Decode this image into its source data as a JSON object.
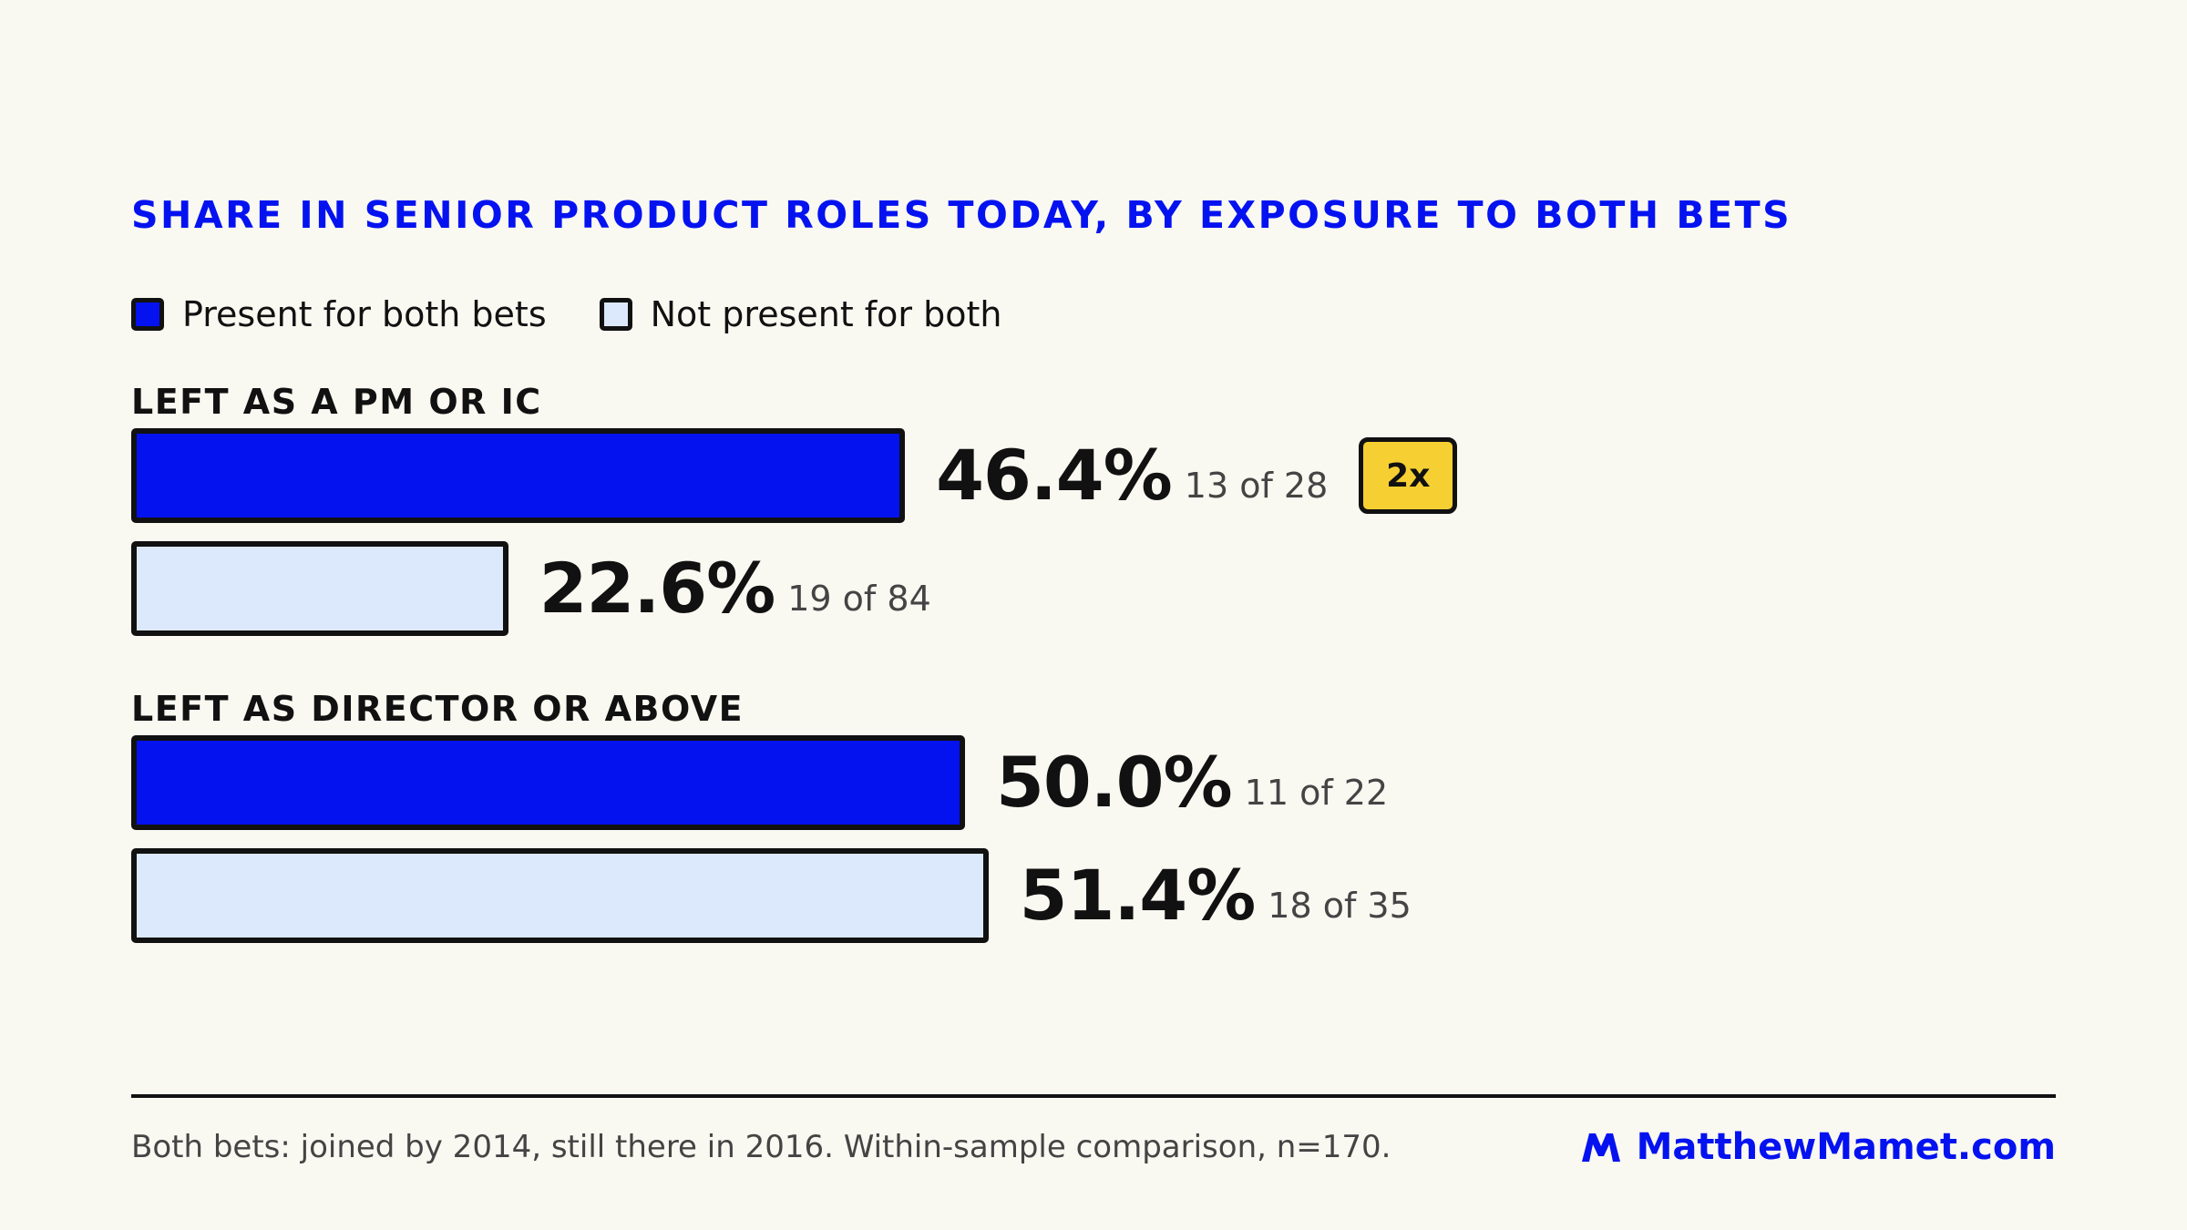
{
  "chart_data": {
    "type": "bar",
    "orientation": "horizontal",
    "title": "SHARE IN SENIOR PRODUCT ROLES TODAY, BY EXPOSURE TO BOTH BETS",
    "legend_position": "top-left",
    "legend": [
      {
        "name": "Present for both bets",
        "color": "#0512f0"
      },
      {
        "name": "Not present for both",
        "color": "#dce8fc"
      }
    ],
    "categories": [
      "LEFT AS A PM OR IC",
      "LEFT AS DIRECTOR OR ABOVE"
    ],
    "series": [
      {
        "name": "Present for both bets",
        "values": [
          46.4,
          50.0
        ],
        "labels": [
          "46.4%",
          "50.0%"
        ],
        "counts": [
          "13 of 28",
          "11 of 22"
        ]
      },
      {
        "name": "Not present for both",
        "values": [
          22.6,
          51.4
        ],
        "labels": [
          "22.6%",
          "51.4%"
        ],
        "counts": [
          "19 of 84",
          "18 of 35"
        ]
      }
    ],
    "annotations": [
      {
        "text": "2x",
        "category": "LEFT AS A PM OR IC",
        "series": "Present for both bets",
        "color": "#f6cf33"
      }
    ],
    "grid": false,
    "axes_visible": false
  },
  "footer": {
    "note": "Both bets: joined by 2014, still there in 2016. Within-sample comparison, n=170.",
    "brand": "MatthewMamet.com",
    "brand_icon": "m-logo-icon"
  },
  "colors": {
    "background": "#f9f8f1",
    "accent": "#0512f0",
    "light_fill": "#dce8fc",
    "badge": "#f6cf33",
    "ink": "#111111"
  }
}
